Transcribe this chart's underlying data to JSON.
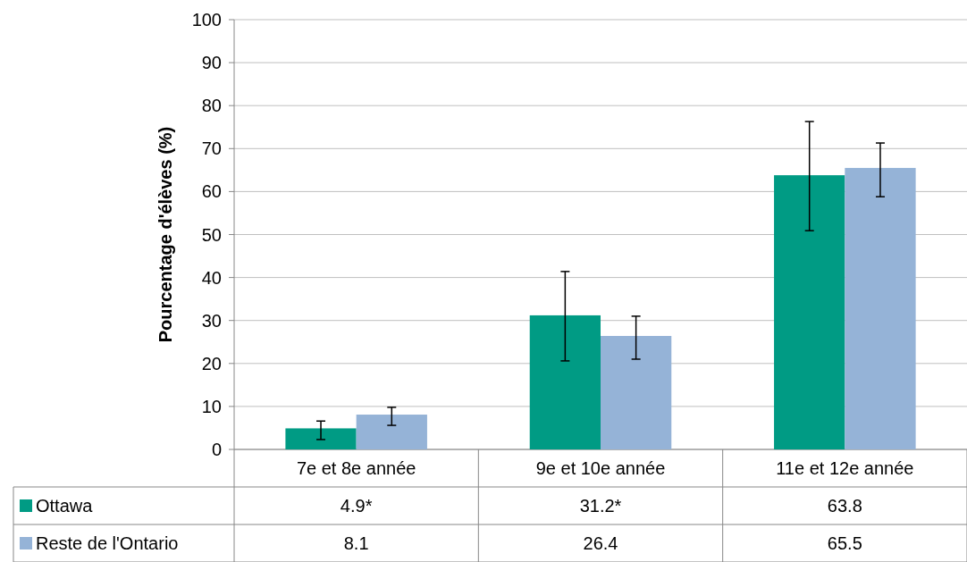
{
  "chart_data": {
    "type": "bar",
    "ylabel": "Pourcentage d'élèves (%)",
    "categories": [
      "7e et 8e année",
      "9e et 10e année",
      "11e et 12e année"
    ],
    "series": [
      {
        "name": "Ottawa",
        "color": "#009b84",
        "values": [
          4.9,
          31.2,
          63.8
        ],
        "errors": [
          [
            2.3,
            6.6
          ],
          [
            20.6,
            41.4
          ],
          [
            50.9,
            76.3
          ]
        ],
        "value_labels": [
          "4.9*",
          "31.2*",
          "63.8"
        ]
      },
      {
        "name": "Reste de l'Ontario",
        "color": "#95b3d7",
        "values": [
          8.1,
          26.4,
          65.5
        ],
        "errors": [
          [
            5.6,
            9.8
          ],
          [
            21,
            31
          ],
          [
            58.8,
            71.3
          ]
        ],
        "value_labels": [
          "8.1",
          "26.4",
          "65.5"
        ]
      }
    ],
    "ylim": [
      0,
      100
    ],
    "yticks": [
      0,
      10,
      20,
      30,
      40,
      50,
      60,
      70,
      80,
      90,
      100
    ],
    "grid": "y",
    "legend": "bottom"
  }
}
